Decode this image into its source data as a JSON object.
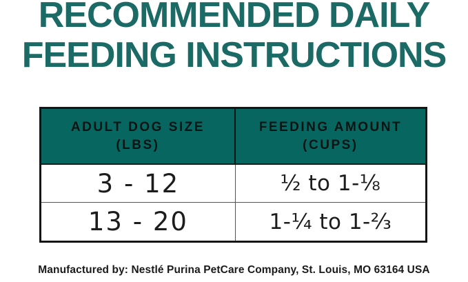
{
  "title": {
    "line1": "RECOMMENDED DAILY",
    "line2": "FEEDING INSTRUCTIONS"
  },
  "table": {
    "columns": [
      {
        "line1": "ADULT DOG SIZE",
        "line2": "(LBS)"
      },
      {
        "line1": "FEEDING AMOUNT",
        "line2": "(CUPS)"
      }
    ],
    "rows": [
      {
        "size": "3 - 12",
        "amount": "½ to 1-⅛"
      },
      {
        "size": "13 - 20",
        "amount": "1-¼ to 1-⅔"
      }
    ]
  },
  "footer": {
    "text": "Manufactured by: Nestlé Purina PetCare Company, St. Louis, MO 63164 USA"
  },
  "colors": {
    "heading_teal": "#1b6a65",
    "table_header_bg": "#086661",
    "table_header_text": "#0c1413",
    "body_text": "#1c1c1c",
    "border_dark": "#151515",
    "border_light": "#555555",
    "background": "#ffffff"
  }
}
